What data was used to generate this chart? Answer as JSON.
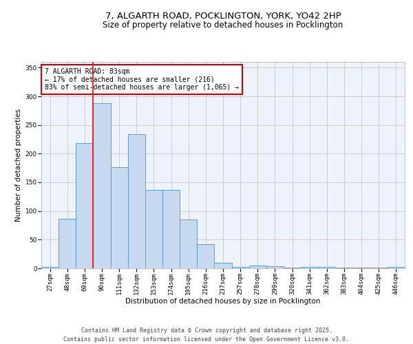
{
  "title_line1": "7, ALGARTH ROAD, POCKLINGTON, YORK, YO42 2HP",
  "title_line2": "Size of property relative to detached houses in Pocklington",
  "xlabel": "Distribution of detached houses by size in Pocklington",
  "ylabel": "Number of detached properties",
  "categories": [
    "27sqm",
    "48sqm",
    "69sqm",
    "90sqm",
    "111sqm",
    "132sqm",
    "153sqm",
    "174sqm",
    "195sqm",
    "216sqm",
    "237sqm",
    "257sqm",
    "278sqm",
    "299sqm",
    "320sqm",
    "341sqm",
    "362sqm",
    "383sqm",
    "404sqm",
    "425sqm",
    "446sqm"
  ],
  "values": [
    3,
    87,
    219,
    288,
    177,
    234,
    137,
    137,
    85,
    42,
    10,
    3,
    5,
    4,
    1,
    2,
    3,
    1,
    1,
    1,
    2
  ],
  "bar_color": "#c7d9f0",
  "bar_edge_color": "#5b9bd5",
  "red_line_index": 3,
  "annotation_text": "7 ALGARTH ROAD: 83sqm\n← 17% of detached houses are smaller (216)\n83% of semi-detached houses are larger (1,065) →",
  "annotation_box_color": "#ffffff",
  "annotation_box_edge": "#cc0000",
  "ylim": [
    0,
    360
  ],
  "yticks": [
    0,
    50,
    100,
    150,
    200,
    250,
    300,
    350
  ],
  "grid_color": "#cccccc",
  "background_color": "#eef3fb",
  "footer_line1": "Contains HM Land Registry data © Crown copyright and database right 2025.",
  "footer_line2": "Contains public sector information licensed under the Open Government Licence v3.0.",
  "title_fontsize": 9.5,
  "subtitle_fontsize": 8.5,
  "axis_label_fontsize": 7.5,
  "tick_fontsize": 6.5,
  "annotation_fontsize": 7,
  "footer_fontsize": 6
}
